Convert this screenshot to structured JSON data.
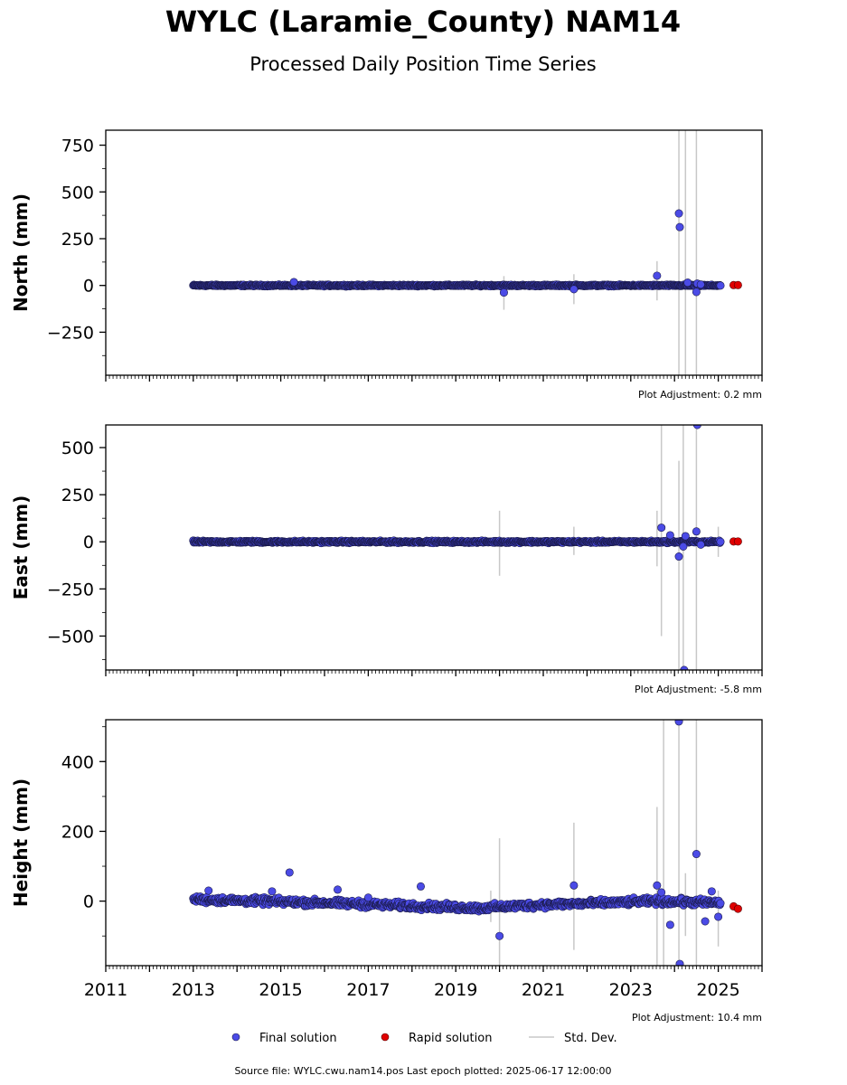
{
  "figure": {
    "title": "WYLC (Laramie_County) NAM14",
    "subtitle": "Processed Daily Position Time Series",
    "footer": "Source file: WYLC.cwu.nam14.pos  Last epoch plotted: 2025-06-17 12:00:00"
  },
  "legend": {
    "position": "bottom-center",
    "entries": [
      {
        "label": "Final solution",
        "color": "#4b4be6"
      },
      {
        "label": "Rapid solution",
        "color": "#e00000"
      },
      {
        "label": "Std. Dev.",
        "color": "#c8c8c8"
      }
    ]
  },
  "colors": {
    "final_fill": "#4b4be6",
    "final_edge": "#1a1a4a",
    "rapid_fill": "#e00000",
    "errorbar": "#c8c8c8",
    "axis": "#000000"
  },
  "chart_data": [
    {
      "type": "scatter",
      "ylabel": "North (mm)",
      "adjustment": "Plot Adjustment: 0.2 mm",
      "xlim": [
        2011,
        2026
      ],
      "ylim": [
        -480,
        830
      ],
      "xticks": [
        2011,
        2013,
        2015,
        2017,
        2019,
        2021,
        2023,
        2025
      ],
      "xtick_labels": [
        "",
        "",
        "",
        "",
        "",
        "",
        "",
        ""
      ],
      "yticks": [
        -250,
        0,
        250,
        500,
        750
      ],
      "ytick_labels": [
        "−250",
        "0",
        "250",
        "500",
        "750"
      ],
      "yminor_step": 125,
      "grid": false,
      "dense_band": {
        "x_start": 2013.0,
        "x_end": 2025.05,
        "y_center": 0,
        "spread": 3,
        "trend": [
          [
            2013,
            0
          ],
          [
            2025,
            0
          ]
        ]
      },
      "series": [
        {
          "name": "Final solution",
          "points": [
            [
              2015.3,
              18
            ],
            [
              2020.1,
              -38
            ],
            [
              2021.7,
              -20
            ],
            [
              2023.6,
              52
            ],
            [
              2024.1,
              385
            ],
            [
              2024.12,
              312
            ],
            [
              2024.3,
              15
            ],
            [
              2024.5,
              -35
            ],
            [
              2024.52,
              10
            ],
            [
              2024.6,
              5
            ]
          ]
        },
        {
          "name": "Rapid solution",
          "points": [
            [
              2025.35,
              2
            ],
            [
              2025.45,
              2
            ]
          ]
        }
      ],
      "errorbars": [
        [
          2020.1,
          -130,
          50
        ],
        [
          2021.7,
          -100,
          60
        ],
        [
          2023.6,
          -80,
          130
        ],
        [
          2024.1,
          -480,
          830
        ],
        [
          2024.25,
          -480,
          830
        ],
        [
          2024.5,
          -480,
          830
        ]
      ]
    },
    {
      "type": "scatter",
      "ylabel": "East (mm)",
      "adjustment": "Plot Adjustment: -5.8 mm",
      "xlim": [
        2011,
        2026
      ],
      "ylim": [
        -680,
        620
      ],
      "xticks": [
        2011,
        2013,
        2015,
        2017,
        2019,
        2021,
        2023,
        2025
      ],
      "xtick_labels": [
        "",
        "",
        "",
        "",
        "",
        "",
        "",
        ""
      ],
      "yticks": [
        -500,
        -250,
        0,
        250,
        500
      ],
      "ytick_labels": [
        "−500",
        "−250",
        "0",
        "250",
        "500"
      ],
      "yminor_step": 125,
      "grid": false,
      "dense_band": {
        "x_start": 2013.0,
        "x_end": 2025.05,
        "y_center": 0,
        "spread": 4,
        "trend": [
          [
            2013,
            0
          ],
          [
            2025,
            0
          ]
        ]
      },
      "series": [
        {
          "name": "Final solution",
          "points": [
            [
              2023.7,
              75
            ],
            [
              2023.9,
              35
            ],
            [
              2024.1,
              -78
            ],
            [
              2024.2,
              -25
            ],
            [
              2024.25,
              30
            ],
            [
              2024.5,
              55
            ],
            [
              2024.52,
              620
            ],
            [
              2024.6,
              -15
            ],
            [
              2024.22,
              -680
            ]
          ]
        },
        {
          "name": "Rapid solution",
          "points": [
            [
              2025.35,
              2
            ],
            [
              2025.45,
              2
            ]
          ]
        }
      ],
      "errorbars": [
        [
          2020.0,
          -180,
          165
        ],
        [
          2021.7,
          -70,
          80
        ],
        [
          2023.6,
          -130,
          165
        ],
        [
          2023.7,
          -500,
          620
        ],
        [
          2024.1,
          -680,
          430
        ],
        [
          2024.2,
          -680,
          620
        ],
        [
          2024.5,
          -680,
          620
        ],
        [
          2025.0,
          -80,
          80
        ]
      ]
    },
    {
      "type": "scatter",
      "ylabel": "Height (mm)",
      "adjustment": "Plot Adjustment: 10.4 mm",
      "xlim": [
        2011,
        2026
      ],
      "ylim": [
        -185,
        520
      ],
      "xticks": [
        2011,
        2013,
        2015,
        2017,
        2019,
        2021,
        2023,
        2025
      ],
      "xtick_labels": [
        "2011",
        "2013",
        "2015",
        "2017",
        "2019",
        "2021",
        "2023",
        "2025"
      ],
      "yticks": [
        0,
        200,
        400
      ],
      "ytick_labels": [
        "0",
        "200",
        "400"
      ],
      "yminor_step": 100,
      "grid": false,
      "dense_band": {
        "x_start": 2013.0,
        "x_end": 2025.05,
        "y_center": 0,
        "spread": 7,
        "trend": [
          [
            2013,
            5
          ],
          [
            2016,
            -5
          ],
          [
            2019.5,
            -20
          ],
          [
            2021,
            -10
          ],
          [
            2022.5,
            -5
          ],
          [
            2023.5,
            0
          ],
          [
            2025,
            -5
          ]
        ]
      },
      "series": [
        {
          "name": "Final solution",
          "points": [
            [
              2013.35,
              30
            ],
            [
              2014.8,
              28
            ],
            [
              2015.2,
              82
            ],
            [
              2016.3,
              33
            ],
            [
              2017.0,
              10
            ],
            [
              2018.2,
              42
            ],
            [
              2020.0,
              -100
            ],
            [
              2021.7,
              45
            ],
            [
              2023.6,
              45
            ],
            [
              2023.7,
              25
            ],
            [
              2023.9,
              -68
            ],
            [
              2024.1,
              515
            ],
            [
              2024.12,
              -180
            ],
            [
              2024.5,
              135
            ],
            [
              2024.7,
              -58
            ],
            [
              2024.85,
              28
            ],
            [
              2025.0,
              -45
            ]
          ]
        },
        {
          "name": "Rapid solution",
          "points": [
            [
              2025.35,
              -15
            ],
            [
              2025.45,
              -22
            ]
          ]
        }
      ],
      "errorbars": [
        [
          2020.0,
          -185,
          180
        ],
        [
          2019.8,
          -60,
          30
        ],
        [
          2021.7,
          -140,
          225
        ],
        [
          2023.6,
          -185,
          270
        ],
        [
          2023.75,
          -185,
          520
        ],
        [
          2024.1,
          -185,
          520
        ],
        [
          2024.25,
          -100,
          80
        ],
        [
          2024.5,
          -185,
          520
        ],
        [
          2025.0,
          -130,
          30
        ]
      ]
    }
  ]
}
